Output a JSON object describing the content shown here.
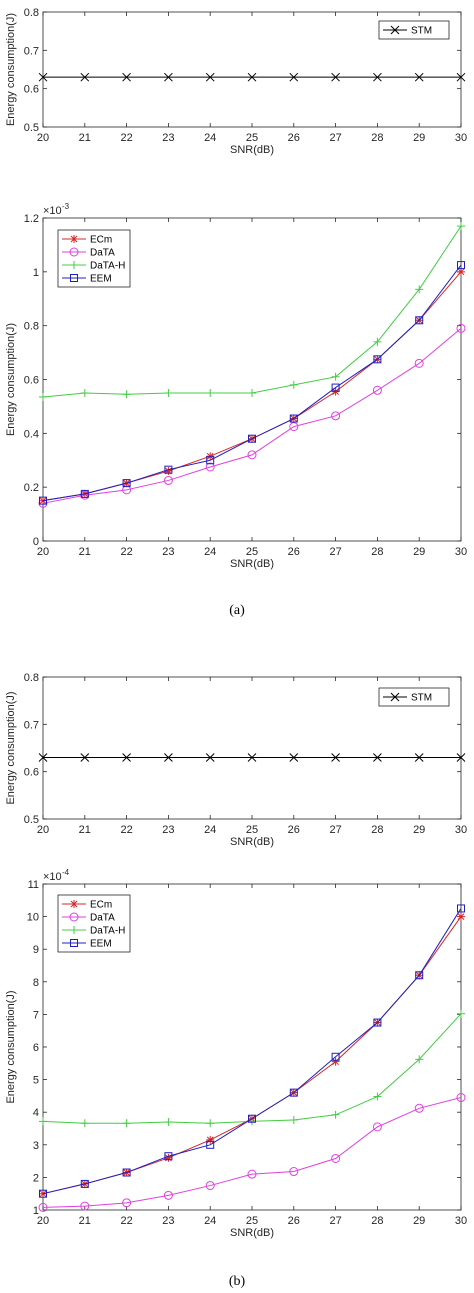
{
  "captions": [
    "(a)",
    "(b)"
  ],
  "colors": {
    "ECm": "#d62728",
    "DaTA": "#e040e0",
    "DaTA-H": "#44cc44",
    "EEM": "#2020c0",
    "STM": "#000000"
  },
  "chart_data": [
    {
      "type": "line",
      "panel": "a-top",
      "xlabel": "SNR(dB)",
      "ylabel": "Energy consumption(J)",
      "xlim": [
        20,
        30
      ],
      "ylim": [
        0.5,
        0.8
      ],
      "x_ticks": [
        "20",
        "21",
        "22",
        "23",
        "24",
        "25",
        "26",
        "27",
        "28",
        "29",
        "30"
      ],
      "y_ticks": [
        "0.5",
        "0.6",
        "0.7",
        "0.8"
      ],
      "legend_position": "top-right",
      "x": [
        20,
        21,
        22,
        23,
        24,
        25,
        26,
        27,
        28,
        29,
        30
      ],
      "series": [
        {
          "name": "STM",
          "marker": "x",
          "values": [
            0.63,
            0.63,
            0.63,
            0.63,
            0.63,
            0.63,
            0.63,
            0.63,
            0.63,
            0.63,
            0.63
          ]
        }
      ]
    },
    {
      "type": "line",
      "panel": "a-bottom",
      "xlabel": "SNR(dB)",
      "ylabel": "Energy consumption(J)",
      "multiplier": "×10",
      "multiplier_exp": "-3",
      "xlim": [
        20,
        30
      ],
      "ylim": [
        0,
        1.2
      ],
      "x_ticks": [
        "20",
        "21",
        "22",
        "23",
        "24",
        "25",
        "26",
        "27",
        "28",
        "29",
        "30"
      ],
      "y_ticks": [
        "0",
        "0.2",
        "0.4",
        "0.6",
        "0.8",
        "1",
        "1.2"
      ],
      "legend_position": "top-left",
      "x": [
        20,
        21,
        22,
        23,
        24,
        25,
        26,
        27,
        28,
        29,
        30
      ],
      "series": [
        {
          "name": "ECm",
          "marker": "star",
          "values": [
            0.15,
            0.175,
            0.215,
            0.26,
            0.315,
            0.38,
            0.455,
            0.555,
            0.675,
            0.82,
            1.0
          ]
        },
        {
          "name": "DaTA",
          "marker": "circle",
          "values": [
            0.14,
            0.17,
            0.19,
            0.225,
            0.275,
            0.32,
            0.425,
            0.465,
            0.56,
            0.66,
            0.79
          ]
        },
        {
          "name": "DaTA-H",
          "marker": "plus",
          "values": [
            0.535,
            0.55,
            0.545,
            0.55,
            0.55,
            0.55,
            0.58,
            0.61,
            0.74,
            0.935,
            1.17
          ]
        },
        {
          "name": "EEM",
          "marker": "square",
          "values": [
            0.15,
            0.175,
            0.215,
            0.265,
            0.3,
            0.38,
            0.455,
            0.57,
            0.675,
            0.82,
            1.025
          ]
        }
      ]
    },
    {
      "type": "line",
      "panel": "b-top",
      "xlabel": "SNR(dB)",
      "ylabel": "Energy consumption(J)",
      "xlim": [
        20,
        30
      ],
      "ylim": [
        0.5,
        0.8
      ],
      "x_ticks": [
        "20",
        "21",
        "22",
        "23",
        "24",
        "25",
        "26",
        "27",
        "28",
        "29",
        "30"
      ],
      "y_ticks": [
        "0.5",
        "0.6",
        "0.7",
        "0.8"
      ],
      "legend_position": "top-right",
      "x": [
        20,
        21,
        22,
        23,
        24,
        25,
        26,
        27,
        28,
        29,
        30
      ],
      "series": [
        {
          "name": "STM",
          "marker": "x",
          "values": [
            0.63,
            0.63,
            0.63,
            0.63,
            0.63,
            0.63,
            0.63,
            0.63,
            0.63,
            0.63,
            0.63
          ]
        }
      ]
    },
    {
      "type": "line",
      "panel": "b-bottom",
      "xlabel": "SNR(dB)",
      "ylabel": "Energy consumption(J)",
      "multiplier": "×10",
      "multiplier_exp": "-4",
      "xlim": [
        20,
        30
      ],
      "ylim": [
        1,
        11
      ],
      "x_ticks": [
        "20",
        "21",
        "22",
        "23",
        "24",
        "25",
        "26",
        "27",
        "28",
        "29",
        "30"
      ],
      "y_ticks": [
        "1",
        "2",
        "3",
        "4",
        "5",
        "6",
        "7",
        "8",
        "9",
        "10",
        "11"
      ],
      "legend_position": "top-left",
      "x": [
        20,
        21,
        22,
        23,
        24,
        25,
        26,
        27,
        28,
        29,
        30
      ],
      "series": [
        {
          "name": "ECm",
          "marker": "star",
          "values": [
            1.5,
            1.8,
            2.15,
            2.6,
            3.15,
            3.8,
            4.6,
            5.55,
            6.75,
            8.2,
            10.0
          ]
        },
        {
          "name": "DaTA",
          "marker": "circle",
          "values": [
            1.08,
            1.12,
            1.22,
            1.45,
            1.75,
            2.1,
            2.18,
            2.58,
            3.55,
            4.12,
            4.45
          ]
        },
        {
          "name": "DaTA-H",
          "marker": "plus",
          "values": [
            3.72,
            3.66,
            3.66,
            3.7,
            3.66,
            3.72,
            3.76,
            3.92,
            4.48,
            5.62,
            7.02
          ]
        },
        {
          "name": "EEM",
          "marker": "square",
          "values": [
            1.5,
            1.8,
            2.15,
            2.65,
            3.0,
            3.8,
            4.6,
            5.7,
            6.75,
            8.2,
            10.25
          ]
        }
      ]
    }
  ]
}
